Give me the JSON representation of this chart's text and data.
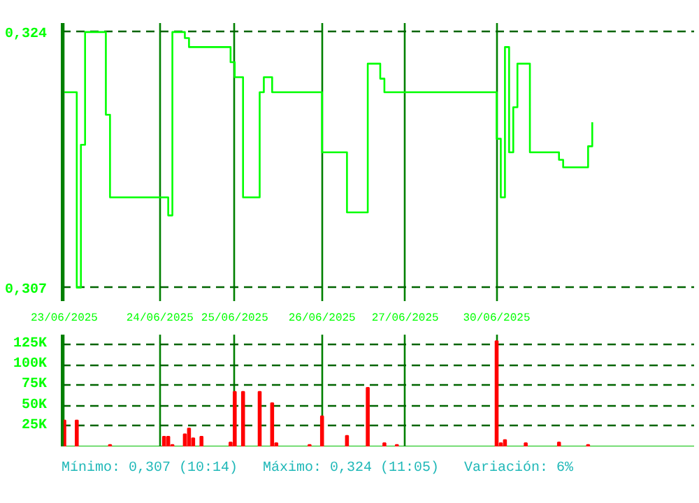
{
  "chart_data": [
    {
      "type": "step",
      "categories": [
        "23/06/2025",
        null,
        null,
        null,
        null,
        null,
        null,
        null,
        null,
        null,
        null,
        null,
        null,
        null,
        null,
        null,
        null,
        null,
        null,
        null,
        null,
        null,
        null,
        "24/06/2025",
        null,
        null,
        null,
        null,
        null,
        null,
        null,
        null,
        null,
        null,
        null,
        null,
        null,
        null,
        null,
        null,
        null,
        "25/06/2025",
        null,
        null,
        null,
        null,
        null,
        null,
        null,
        null,
        null,
        null,
        null,
        null,
        null,
        null,
        null,
        null,
        null,
        null,
        null,
        null,
        "26/06/2025",
        null,
        null,
        null,
        null,
        null,
        null,
        null,
        null,
        null,
        null,
        null,
        null,
        null,
        null,
        null,
        null,
        null,
        null,
        null,
        "27/06/2025",
        null,
        null,
        null,
        null,
        null,
        null,
        null,
        null,
        null,
        null,
        null,
        null,
        null,
        null,
        null,
        null,
        null,
        null,
        null,
        null,
        null,
        "30/06/2025",
        null,
        null,
        null,
        null,
        null,
        null,
        null,
        null,
        null,
        null,
        null,
        null,
        null,
        null,
        null,
        null,
        null,
        null,
        null,
        null,
        null,
        null,
        null,
        null,
        null,
        null,
        null,
        null,
        null,
        null,
        null,
        null,
        null,
        null,
        null,
        null,
        null,
        null,
        null,
        null,
        null,
        null,
        null,
        null,
        null,
        null,
        null
      ],
      "series": [
        {
          "color": "#00ff00",
          "values": [
            0.32,
            0.32,
            0.32,
            0.307,
            0.3165,
            0.324,
            0.324,
            0.324,
            0.324,
            0.324,
            0.3185,
            0.313,
            0.313,
            0.313,
            0.313,
            0.313,
            0.313,
            0.313,
            0.313,
            0.313,
            0.313,
            0.313,
            0.313,
            0.313,
            0.313,
            0.3118,
            0.324,
            0.324,
            0.324,
            0.3236,
            0.323,
            0.323,
            0.323,
            0.323,
            0.323,
            0.323,
            0.323,
            0.323,
            0.323,
            0.323,
            0.322,
            0.321,
            0.321,
            0.313,
            0.313,
            0.313,
            0.313,
            0.32,
            0.321,
            0.321,
            0.32,
            0.32,
            0.32,
            0.32,
            0.32,
            0.32,
            0.32,
            0.32,
            0.32,
            0.32,
            0.32,
            0.32,
            0.316,
            0.316,
            0.316,
            0.316,
            0.316,
            0.316,
            0.312,
            0.312,
            0.312,
            0.312,
            0.312,
            0.3219,
            0.3219,
            0.3219,
            0.3209,
            0.32,
            0.32,
            0.32,
            0.32,
            0.32,
            0.32,
            0.32,
            0.32,
            0.32,
            0.32,
            0.32,
            0.32,
            0.32,
            0.32,
            0.32,
            0.32,
            0.32,
            0.32,
            0.32,
            0.32,
            0.32,
            0.32,
            0.32,
            0.32,
            0.32,
            0.32,
            0.32,
            0.3169,
            0.313,
            0.323,
            0.316,
            0.319,
            0.3219,
            0.3219,
            0.3219,
            0.316,
            0.316,
            0.316,
            0.316,
            0.316,
            0.316,
            0.316,
            0.3155,
            0.315,
            0.315,
            0.315,
            0.315,
            0.315,
            0.315,
            0.3164,
            0.318,
            null,
            null,
            null,
            null,
            null,
            null,
            null,
            null,
            null,
            null,
            null,
            null,
            null,
            null,
            null,
            null,
            null,
            null,
            null,
            null,
            null,
            null,
            null,
            null
          ]
        }
      ],
      "ylim": [
        0.3061,
        0.3246
      ],
      "yticks": [
        {
          "value": 0.307,
          "label": "0,307"
        },
        {
          "value": 0.324,
          "label": "0,324"
        }
      ],
      "grid": true,
      "line_style": "solid"
    },
    {
      "type": "bar",
      "categories": [
        null,
        null,
        null,
        null,
        null,
        null,
        null,
        null,
        null,
        null,
        null,
        null,
        null,
        null,
        null,
        null,
        null,
        null,
        null,
        null,
        null,
        null,
        null,
        null,
        null,
        null,
        null,
        null,
        null,
        null,
        null,
        null,
        null,
        null,
        null,
        null,
        null,
        null,
        null,
        null,
        null,
        null,
        null,
        null,
        null,
        null,
        null,
        null,
        null,
        null,
        null,
        null,
        null,
        null,
        null,
        null,
        null,
        null,
        null,
        null,
        null,
        null,
        null,
        null,
        null,
        null,
        null,
        null,
        null,
        null,
        null,
        null,
        null,
        null,
        null,
        null,
        null,
        null,
        null,
        null,
        null,
        null,
        null,
        null,
        null,
        null,
        null,
        null,
        null,
        null,
        null,
        null,
        null,
        null,
        null,
        null,
        null,
        null,
        null,
        null,
        null,
        null,
        null,
        null,
        null,
        null,
        null,
        null,
        null,
        null,
        null,
        null,
        null,
        null,
        null,
        null,
        null,
        null,
        null,
        null,
        null,
        null,
        null,
        null,
        null,
        null,
        null,
        null,
        null,
        null,
        null,
        null,
        null,
        null,
        null,
        null,
        null,
        null,
        null,
        null,
        null,
        null,
        null,
        null,
        null,
        null,
        null,
        null,
        null,
        null,
        null,
        null
      ],
      "series": [
        {
          "color": "#ff0000",
          "values": [
            32000,
            null,
            null,
            32000,
            null,
            null,
            null,
            null,
            null,
            null,
            null,
            2000,
            null,
            null,
            null,
            null,
            null,
            null,
            null,
            null,
            null,
            null,
            null,
            null,
            12000,
            12000,
            2000,
            null,
            null,
            15000,
            22000,
            10000,
            null,
            12000,
            null,
            null,
            null,
            null,
            null,
            null,
            5000,
            67000,
            null,
            67000,
            null,
            null,
            null,
            67000,
            null,
            null,
            53000,
            4000,
            null,
            null,
            null,
            null,
            null,
            null,
            null,
            2000,
            null,
            null,
            37000,
            null,
            null,
            null,
            null,
            null,
            13000,
            null,
            null,
            null,
            null,
            72000,
            null,
            null,
            null,
            4000,
            null,
            null,
            2000,
            null,
            null,
            null,
            null,
            null,
            null,
            null,
            null,
            null,
            null,
            null,
            null,
            null,
            null,
            null,
            null,
            null,
            null,
            null,
            null,
            null,
            null,
            null,
            129000,
            4000,
            8000,
            null,
            null,
            null,
            null,
            4000,
            null,
            null,
            null,
            null,
            null,
            null,
            null,
            5000,
            null,
            null,
            null,
            null,
            null,
            null,
            2000,
            null,
            null,
            null,
            null,
            null,
            null,
            null,
            null,
            null,
            null,
            null,
            null,
            null,
            null,
            null,
            null,
            null,
            null,
            null,
            null,
            null,
            null,
            null,
            null,
            null
          ]
        }
      ],
      "ylim": [
        0,
        137000
      ],
      "yticks": [
        {
          "value": 25000,
          "label": "25K"
        },
        {
          "value": 50000,
          "label": "50K"
        },
        {
          "value": 75000,
          "label": "75K"
        },
        {
          "value": 100000,
          "label": "100K"
        },
        {
          "value": 125000,
          "label": "125K"
        }
      ],
      "grid": true,
      "tick_labels": "y",
      "annotations": [
        "Mínimo: 0,307 (10:14)",
        "Máximo: 0,324 (11:05)",
        "Variación: 6%"
      ]
    }
  ]
}
